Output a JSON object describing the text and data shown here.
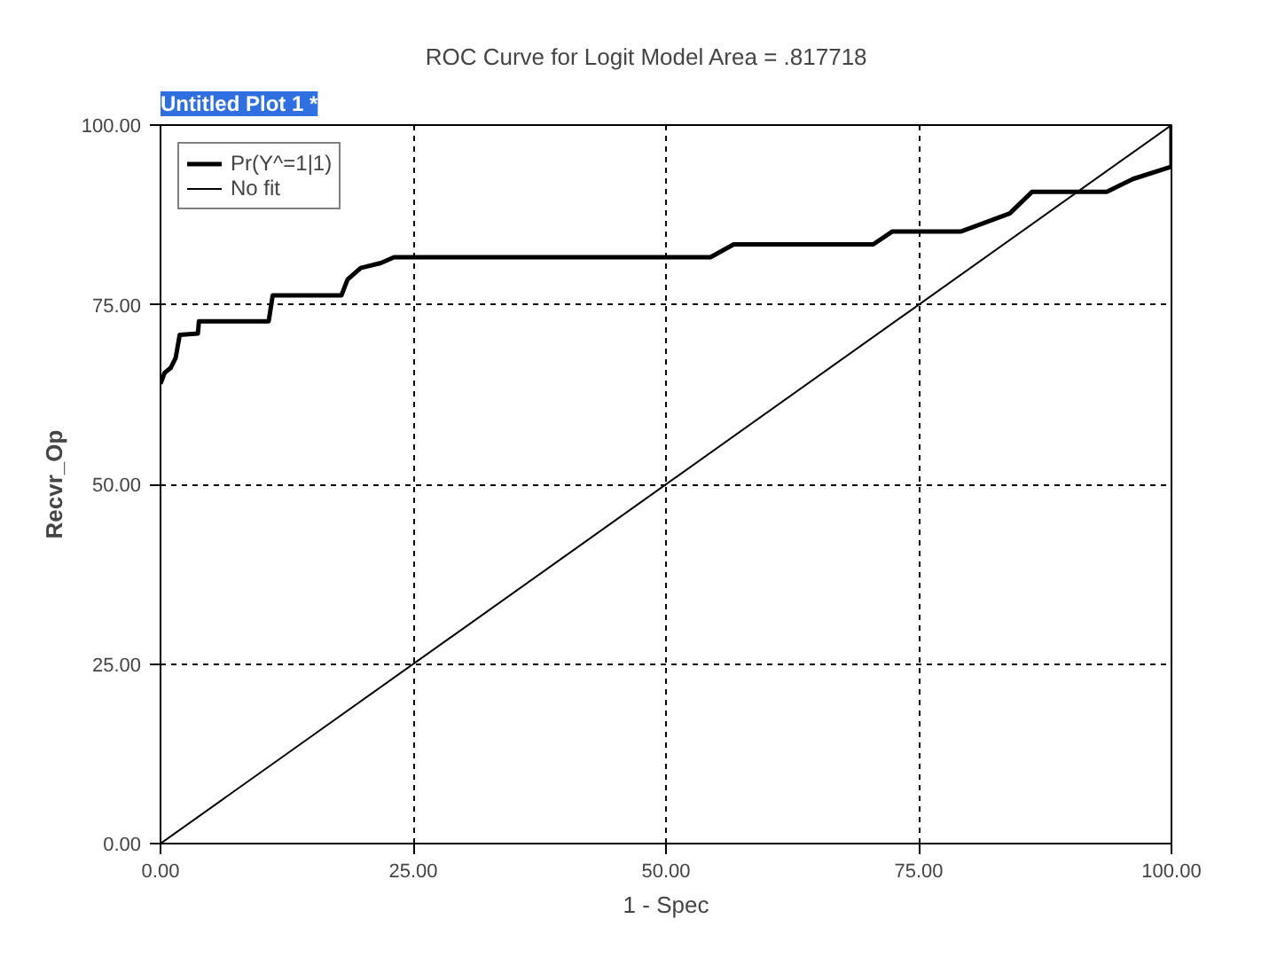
{
  "chart_data": {
    "type": "line",
    "title": "ROC Curve for   Logit   Model   Area = .817718",
    "xlabel": "1 - Spec",
    "ylabel": "Recvr_Op",
    "annotations": [
      "Untitled Plot 1 *"
    ],
    "series": [
      {
        "name": "Pr(Y^=1|1)",
        "color": "#000000",
        "x": [
          0,
          0.4,
          1.0,
          1.5,
          1.9,
          3.7,
          3.8,
          10.7,
          11.1,
          17.9,
          18.5,
          19.8,
          21.8,
          23.1,
          54.4,
          56.7,
          70.5,
          72.4,
          79.2,
          84,
          86.2,
          93.6,
          96.2,
          100,
          100
        ],
        "values": [
          64,
          65.5,
          66.2,
          67.6,
          70.8,
          71,
          72.7,
          72.7,
          76.3,
          76.3,
          78.5,
          80.1,
          80.8,
          81.6,
          81.6,
          83.4,
          83.4,
          85.2,
          85.2,
          87.7,
          90.7,
          90.7,
          92.5,
          94.2,
          100
        ]
      },
      {
        "name": "No fit",
        "color": "#000000",
        "x": [
          0,
          100
        ],
        "values": [
          0,
          100
        ]
      }
    ],
    "xlim": [
      0,
      100
    ],
    "ylim": [
      0,
      100
    ],
    "xticks": [
      {
        "value": 0,
        "label": "0.00"
      },
      {
        "value": 25,
        "label": "25.00"
      },
      {
        "value": 50,
        "label": "50.00"
      },
      {
        "value": 75,
        "label": "75.00"
      },
      {
        "value": 100,
        "label": "100.00"
      }
    ],
    "yticks": [
      {
        "value": 0,
        "label": "0.00"
      },
      {
        "value": 25,
        "label": "25.00"
      },
      {
        "value": 50,
        "label": "50.00"
      },
      {
        "value": 75,
        "label": "75.00"
      },
      {
        "value": 100,
        "label": "100.00"
      }
    ],
    "grid": true,
    "legend": "top left",
    "line_style": "solid"
  }
}
